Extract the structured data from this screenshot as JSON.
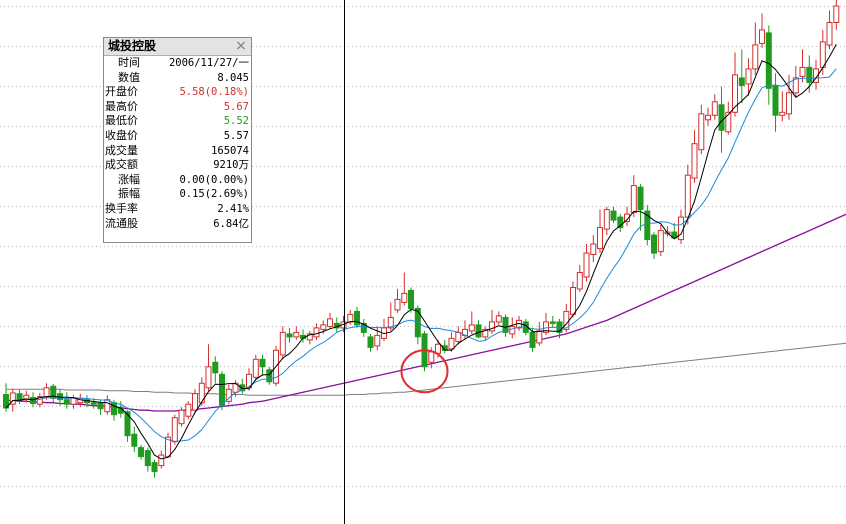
{
  "colors": {
    "up": "#d22f2f",
    "down": "#1f9b1f",
    "ma5": "#000000",
    "ma10": "#1e8ad9",
    "ma60": "#8b10a0",
    "ma250": "#7f7f7f",
    "grid": "#b9b9b9",
    "crosshair": "#000000",
    "highlight": "#e52b2b"
  },
  "info": {
    "title": "城投控股",
    "close_icon": "×",
    "rows": [
      {
        "label": "时间",
        "value": "2006/11/27/一",
        "color": "#000000",
        "indent": true
      },
      {
        "label": "数值",
        "value": "8.045",
        "color": "#000000",
        "indent": true
      },
      {
        "label": "开盘价",
        "value": "5.58(0.18%)",
        "color": "#d22f2f",
        "indent": false
      },
      {
        "label": "最高价",
        "value": "5.67",
        "color": "#d22f2f",
        "indent": false
      },
      {
        "label": "最低价",
        "value": "5.52",
        "color": "#1f9b1f",
        "indent": false
      },
      {
        "label": "收盘价",
        "value": "5.57",
        "color": "#000000",
        "indent": false
      },
      {
        "label": "成交量",
        "value": "165074",
        "color": "#000000",
        "indent": false
      },
      {
        "label": "成交额",
        "value": "9210万",
        "color": "#000000",
        "indent": false
      },
      {
        "label": "涨幅",
        "value": "0.00(0.00%)",
        "color": "#000000",
        "indent": true
      },
      {
        "label": "振幅",
        "value": "0.15(2.69%)",
        "color": "#000000",
        "indent": true
      },
      {
        "label": "换手率",
        "value": "2.41%",
        "color": "#000000",
        "indent": false
      },
      {
        "label": "流通股",
        "value": "6.84亿",
        "color": "#000000",
        "indent": false
      }
    ]
  },
  "chart_data": {
    "type": "candlestick",
    "title": "",
    "xlabel": "",
    "ylabel": "",
    "grid": true,
    "ylim": [
      3.1,
      10.1
    ],
    "crosshair_index": 50,
    "highlight_index": 62,
    "candles": [
      [
        4.83,
        4.65,
        4.98,
        4.6
      ],
      [
        4.7,
        4.85,
        4.9,
        4.6
      ],
      [
        4.84,
        4.76,
        4.89,
        4.7
      ],
      [
        4.77,
        4.82,
        4.88,
        4.72
      ],
      [
        4.79,
        4.71,
        4.86,
        4.66
      ],
      [
        4.7,
        4.8,
        4.85,
        4.66
      ],
      [
        4.8,
        4.92,
        4.98,
        4.76
      ],
      [
        4.94,
        4.78,
        4.97,
        4.73
      ],
      [
        4.84,
        4.76,
        4.9,
        4.68
      ],
      [
        4.76,
        4.7,
        4.86,
        4.64
      ],
      [
        4.7,
        4.78,
        4.82,
        4.64
      ],
      [
        4.72,
        4.78,
        4.84,
        4.66
      ],
      [
        4.76,
        4.72,
        4.82,
        4.66
      ],
      [
        4.72,
        4.7,
        4.78,
        4.64
      ],
      [
        4.72,
        4.64,
        4.76,
        4.56
      ],
      [
        4.6,
        4.76,
        4.82,
        4.56
      ],
      [
        4.72,
        4.56,
        4.76,
        4.48
      ],
      [
        4.66,
        4.58,
        4.74,
        4.52
      ],
      [
        4.6,
        4.28,
        4.62,
        4.2
      ],
      [
        4.3,
        4.14,
        4.4,
        4.06
      ],
      [
        4.12,
        4.0,
        4.16,
        3.96
      ],
      [
        4.08,
        3.88,
        4.12,
        3.8
      ],
      [
        3.92,
        3.8,
        3.96,
        3.72
      ],
      [
        3.88,
        4.02,
        4.08,
        3.84
      ],
      [
        4.0,
        4.26,
        4.32,
        3.98
      ],
      [
        4.2,
        4.52,
        4.56,
        4.16
      ],
      [
        4.44,
        4.62,
        4.66,
        4.4
      ],
      [
        4.54,
        4.7,
        4.74,
        4.5
      ],
      [
        4.62,
        4.84,
        4.9,
        4.58
      ],
      [
        4.72,
        4.98,
        5.06,
        4.68
      ],
      [
        4.92,
        5.2,
        5.5,
        4.88
      ],
      [
        5.26,
        5.12,
        5.34,
        4.98
      ],
      [
        5.1,
        4.68,
        5.14,
        4.62
      ],
      [
        4.74,
        4.9,
        4.96,
        4.7
      ],
      [
        4.86,
        4.98,
        5.02,
        4.8
      ],
      [
        4.96,
        4.88,
        5.04,
        4.84
      ],
      [
        4.92,
        5.1,
        5.18,
        4.88
      ],
      [
        5.06,
        5.3,
        5.36,
        5.02
      ],
      [
        5.3,
        5.2,
        5.36,
        5.08
      ],
      [
        5.16,
        5.0,
        5.2,
        4.96
      ],
      [
        4.98,
        5.42,
        5.48,
        4.94
      ],
      [
        5.36,
        5.66,
        5.74,
        5.3
      ],
      [
        5.64,
        5.6,
        5.72,
        5.52
      ],
      [
        5.6,
        5.66,
        5.74,
        5.56
      ],
      [
        5.62,
        5.58,
        5.7,
        5.52
      ],
      [
        5.56,
        5.64,
        5.68,
        5.5
      ],
      [
        5.6,
        5.72,
        5.78,
        5.56
      ],
      [
        5.7,
        5.76,
        5.82,
        5.64
      ],
      [
        5.74,
        5.84,
        5.92,
        5.7
      ],
      [
        5.78,
        5.72,
        5.86,
        5.66
      ],
      [
        5.72,
        5.8,
        5.88,
        5.66
      ],
      [
        5.8,
        5.9,
        5.96,
        5.76
      ],
      [
        5.94,
        5.76,
        6.0,
        5.72
      ],
      [
        5.78,
        5.66,
        5.84,
        5.6
      ],
      [
        5.6,
        5.46,
        5.64,
        5.4
      ],
      [
        5.48,
        5.62,
        5.74,
        5.42
      ],
      [
        5.58,
        5.72,
        5.84,
        5.54
      ],
      [
        5.72,
        5.86,
        6.06,
        5.68
      ],
      [
        5.96,
        6.1,
        6.24,
        5.92
      ],
      [
        6.06,
        6.18,
        6.46,
        6.02
      ],
      [
        6.22,
        5.98,
        6.26,
        5.92
      ],
      [
        5.98,
        5.6,
        6.02,
        5.5
      ],
      [
        5.64,
        5.2,
        5.68,
        5.14
      ],
      [
        5.26,
        5.4,
        5.46,
        5.18
      ],
      [
        5.38,
        5.5,
        5.56,
        5.32
      ],
      [
        5.48,
        5.42,
        5.56,
        5.38
      ],
      [
        5.44,
        5.58,
        5.66,
        5.4
      ],
      [
        5.54,
        5.66,
        5.74,
        5.5
      ],
      [
        5.62,
        5.7,
        5.82,
        5.56
      ],
      [
        5.68,
        5.76,
        5.94,
        5.64
      ],
      [
        5.76,
        5.6,
        5.82,
        5.58
      ],
      [
        5.6,
        5.7,
        5.74,
        5.56
      ],
      [
        5.68,
        5.8,
        5.96,
        5.64
      ],
      [
        5.8,
        5.88,
        5.94,
        5.76
      ],
      [
        5.86,
        5.66,
        5.9,
        5.6
      ],
      [
        5.64,
        5.74,
        5.86,
        5.58
      ],
      [
        5.72,
        5.82,
        5.88,
        5.68
      ],
      [
        5.8,
        5.66,
        5.84,
        5.62
      ],
      [
        5.66,
        5.46,
        5.72,
        5.4
      ],
      [
        5.52,
        5.68,
        5.8,
        5.48
      ],
      [
        5.66,
        5.8,
        5.92,
        5.62
      ],
      [
        5.8,
        5.78,
        5.88,
        5.72
      ],
      [
        5.8,
        5.66,
        5.84,
        5.58
      ],
      [
        5.7,
        5.94,
        6.04,
        5.66
      ],
      [
        5.9,
        6.26,
        6.34,
        5.86
      ],
      [
        6.24,
        6.46,
        6.56,
        6.2
      ],
      [
        6.4,
        6.72,
        6.84,
        6.34
      ],
      [
        6.7,
        6.84,
        6.96,
        6.6
      ],
      [
        6.78,
        7.06,
        7.3,
        6.72
      ],
      [
        7.04,
        7.3,
        7.34,
        6.96
      ],
      [
        7.28,
        7.16,
        7.34,
        7.12
      ],
      [
        7.2,
        7.06,
        7.24,
        7.0
      ],
      [
        7.14,
        7.24,
        7.34,
        7.08
      ],
      [
        7.26,
        7.62,
        7.76,
        7.2
      ],
      [
        7.6,
        7.3,
        7.64,
        7.02
      ],
      [
        7.28,
        6.9,
        7.36,
        6.82
      ],
      [
        6.96,
        6.72,
        7.0,
        6.64
      ],
      [
        6.74,
        7.02,
        7.1,
        6.68
      ],
      [
        6.98,
        7.0,
        7.08,
        6.94
      ],
      [
        7.0,
        6.92,
        7.12,
        6.9
      ],
      [
        6.9,
        7.2,
        7.3,
        6.84
      ],
      [
        7.2,
        7.76,
        7.9,
        7.1
      ],
      [
        7.72,
        8.18,
        8.36,
        7.66
      ],
      [
        8.1,
        8.58,
        8.7,
        8.04
      ],
      [
        8.5,
        8.56,
        8.66,
        8.42
      ],
      [
        8.56,
        8.74,
        8.84,
        8.5
      ],
      [
        8.7,
        8.36,
        8.94,
        8.06
      ],
      [
        8.34,
        8.6,
        8.74,
        8.3
      ],
      [
        8.6,
        9.1,
        9.4,
        8.54
      ],
      [
        9.06,
        8.96,
        9.44,
        8.72
      ],
      [
        8.98,
        9.18,
        9.32,
        8.82
      ],
      [
        9.18,
        9.5,
        9.8,
        9.1
      ],
      [
        9.52,
        9.7,
        9.92,
        9.46
      ],
      [
        9.66,
        8.92,
        9.76,
        8.7
      ],
      [
        8.96,
        8.56,
        9.12,
        8.34
      ],
      [
        8.56,
        8.6,
        8.88,
        8.48
      ],
      [
        8.58,
        8.86,
        9.1,
        8.5
      ],
      [
        8.86,
        9.06,
        9.22,
        8.8
      ],
      [
        9.08,
        9.2,
        9.44,
        9.0
      ],
      [
        9.2,
        9.0,
        9.36,
        8.86
      ],
      [
        9.0,
        9.18,
        9.3,
        8.9
      ],
      [
        9.2,
        9.54,
        9.7,
        9.1
      ],
      [
        9.5,
        9.8,
        9.96,
        9.44
      ],
      [
        9.8,
        10.02,
        10.12,
        9.7
      ]
    ],
    "ma60": [
      4.75,
      4.75,
      4.74,
      4.74,
      4.73,
      4.73,
      4.72,
      4.72,
      4.71,
      4.71,
      4.7,
      4.7,
      4.69,
      4.68,
      4.68,
      4.67,
      4.66,
      4.65,
      4.64,
      4.63,
      4.62,
      4.62,
      4.61,
      4.61,
      4.61,
      4.61,
      4.62,
      4.62,
      4.63,
      4.64,
      4.65,
      4.66,
      4.67,
      4.68,
      4.69,
      4.7,
      4.72,
      4.73,
      4.74,
      4.76,
      4.78,
      4.8,
      4.82,
      4.84,
      4.86,
      4.88,
      4.9,
      4.92,
      4.94,
      4.96,
      4.98,
      5.0,
      5.02,
      5.04,
      5.06,
      5.08,
      5.1,
      5.12,
      5.14,
      5.16,
      5.18,
      5.2,
      5.22,
      5.24,
      5.26,
      5.28,
      5.3,
      5.32,
      5.34,
      5.36,
      5.38,
      5.4,
      5.42,
      5.44,
      5.46,
      5.48,
      5.5,
      5.52,
      5.54,
      5.56,
      5.58,
      5.6,
      5.62,
      5.64,
      5.67,
      5.7,
      5.73,
      5.76,
      5.79,
      5.82,
      5.86,
      5.9,
      5.94,
      5.98,
      6.02,
      6.06,
      6.1,
      6.14,
      6.18,
      6.22,
      6.26,
      6.3,
      6.34,
      6.38,
      6.42,
      6.46,
      6.5,
      6.54,
      6.58,
      6.62,
      6.66,
      6.7,
      6.74,
      6.78,
      6.82,
      6.86,
      6.9,
      6.94,
      6.98,
      7.02,
      7.06,
      7.1,
      7.14,
      7.18,
      7.22,
      7.26
    ],
    "ma250": [
      4.9,
      4.9,
      4.9,
      4.9,
      4.9,
      4.9,
      4.9,
      4.9,
      4.9,
      4.89,
      4.89,
      4.89,
      4.89,
      4.89,
      4.89,
      4.88,
      4.88,
      4.88,
      4.88,
      4.87,
      4.87,
      4.87,
      4.86,
      4.86,
      4.86,
      4.85,
      4.85,
      4.85,
      4.84,
      4.84,
      4.84,
      4.84,
      4.83,
      4.83,
      4.83,
      4.83,
      4.82,
      4.82,
      4.82,
      4.82,
      4.82,
      4.82,
      4.82,
      4.82,
      4.82,
      4.82,
      4.82,
      4.82,
      4.82,
      4.82,
      4.82,
      4.83,
      4.83,
      4.83,
      4.84,
      4.84,
      4.85,
      4.85,
      4.86,
      4.86,
      4.87,
      4.88,
      4.89,
      4.9,
      4.91,
      4.92,
      4.93,
      4.94,
      4.95,
      4.96,
      4.97,
      4.98,
      4.99,
      5.0,
      5.01,
      5.02,
      5.03,
      5.04,
      5.05,
      5.06,
      5.07,
      5.08,
      5.09,
      5.1,
      5.11,
      5.12,
      5.13,
      5.14,
      5.15,
      5.16,
      5.17,
      5.18,
      5.19,
      5.2,
      5.21,
      5.22,
      5.23,
      5.24,
      5.25,
      5.26,
      5.27,
      5.28,
      5.29,
      5.3,
      5.31,
      5.32,
      5.33,
      5.34,
      5.35,
      5.36,
      5.37,
      5.38,
      5.39,
      5.4,
      5.41,
      5.42,
      5.43,
      5.44,
      5.45,
      5.46,
      5.47,
      5.48,
      5.49,
      5.5,
      5.51,
      5.52
    ]
  }
}
